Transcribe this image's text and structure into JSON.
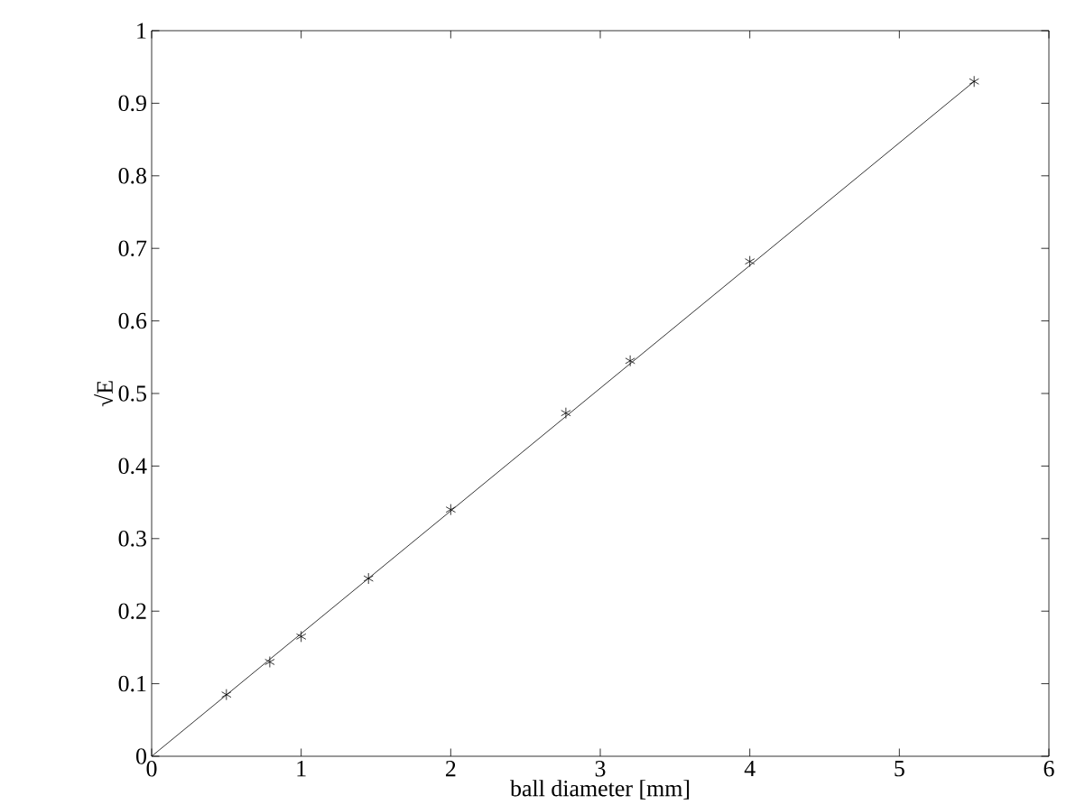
{
  "chart_data": {
    "type": "scatter",
    "xlabel": "ball diameter [mm]",
    "ylabel": "√E",
    "xlim": [
      0,
      6
    ],
    "ylim": [
      0,
      1
    ],
    "xticks": [
      0,
      1,
      2,
      3,
      4,
      5,
      6
    ],
    "yticks": [
      0,
      0.1,
      0.2,
      0.3,
      0.4,
      0.5,
      0.6,
      0.7,
      0.8,
      0.9,
      1
    ],
    "grid": false,
    "marker": "cross",
    "series": [
      {
        "color": "#000000",
        "x": [
          0.5,
          0.79,
          1.0,
          1.45,
          2.0,
          2.77,
          3.2,
          4.0,
          5.5
        ],
        "values": [
          0.085,
          0.13,
          0.165,
          0.245,
          0.34,
          0.473,
          0.545,
          0.682,
          0.93
        ]
      },
      {
        "type": "line",
        "color": "#000000",
        "marker": "none",
        "line_style": "solid",
        "x": [
          0,
          5.5
        ],
        "values": [
          0,
          0.93
        ]
      }
    ]
  }
}
